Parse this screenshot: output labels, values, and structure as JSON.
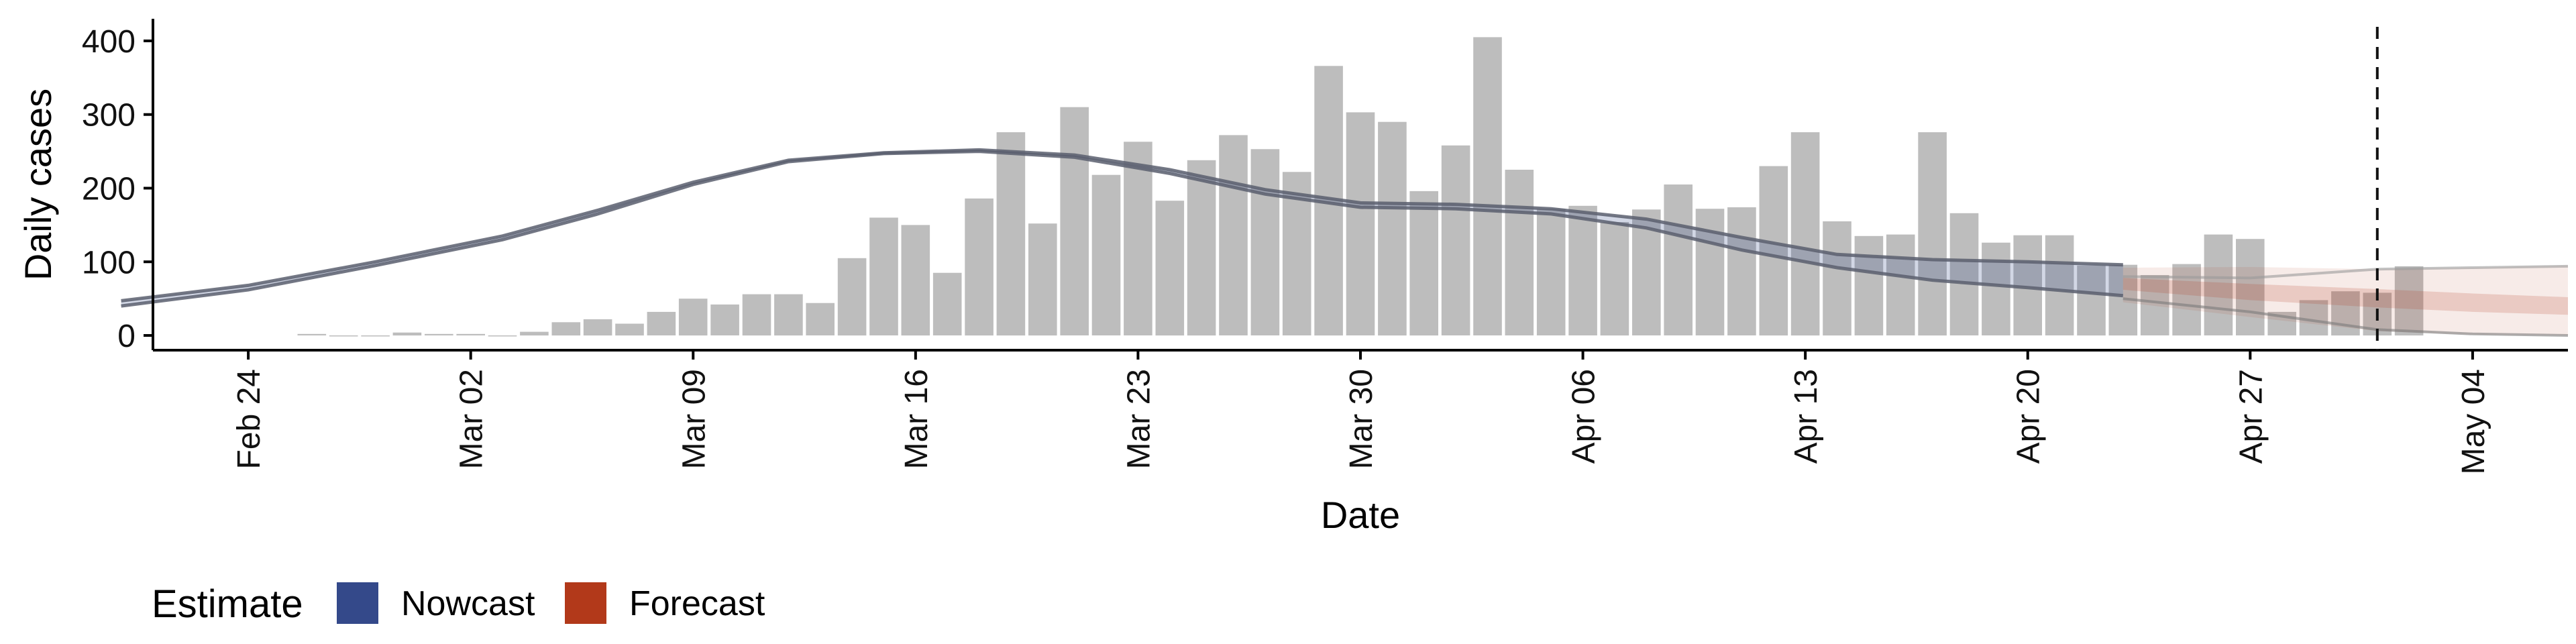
{
  "chart_data": {
    "type": "bar",
    "xlabel": "Date",
    "ylabel": "Daily cases",
    "ylim": [
      -20,
      430
    ],
    "yticks": [
      0,
      100,
      200,
      300,
      400
    ],
    "x_start": "2020-02-21",
    "x_end": "2020-05-07",
    "xticks": [
      {
        "date": "2020-02-24",
        "label": "Feb 24"
      },
      {
        "date": "2020-03-02",
        "label": "Mar 02"
      },
      {
        "date": "2020-03-09",
        "label": "Mar 09"
      },
      {
        "date": "2020-03-16",
        "label": "Mar 16"
      },
      {
        "date": "2020-03-23",
        "label": "Mar 23"
      },
      {
        "date": "2020-03-30",
        "label": "Mar 30"
      },
      {
        "date": "2020-04-06",
        "label": "Apr 06"
      },
      {
        "date": "2020-04-13",
        "label": "Apr 13"
      },
      {
        "date": "2020-04-20",
        "label": "Apr 20"
      },
      {
        "date": "2020-04-27",
        "label": "Apr 27"
      },
      {
        "date": "2020-05-04",
        "label": "May 04"
      }
    ],
    "bars": {
      "start_date": "2020-02-26",
      "values": [
        2,
        0,
        0,
        4,
        2,
        2,
        0,
        5,
        18,
        22,
        16,
        32,
        50,
        42,
        56,
        56,
        44,
        105,
        160,
        150,
        85,
        186,
        276,
        152,
        310,
        218,
        263,
        183,
        238,
        272,
        253,
        222,
        366,
        303,
        290,
        196,
        258,
        405,
        225,
        172,
        176,
        154,
        171,
        205,
        172,
        174,
        230,
        276,
        155,
        135,
        137,
        276,
        166,
        126,
        136,
        136,
        95,
        96,
        82,
        97,
        137,
        131,
        32,
        48,
        60,
        58,
        94
      ]
    },
    "vline_date": "2020-05-01",
    "series": [
      {
        "name": "Nowcast",
        "color": "#34498a",
        "upper_line": [
          [
            "2020-02-20",
            47
          ],
          [
            "2020-02-24",
            68
          ],
          [
            "2020-02-28",
            100
          ],
          [
            "2020-03-03",
            135
          ],
          [
            "2020-03-06",
            170
          ],
          [
            "2020-03-09",
            208
          ],
          [
            "2020-03-12",
            238
          ],
          [
            "2020-03-15",
            248
          ],
          [
            "2020-03-18",
            252
          ],
          [
            "2020-03-21",
            245
          ],
          [
            "2020-03-24",
            225
          ],
          [
            "2020-03-27",
            198
          ],
          [
            "2020-03-30",
            180
          ],
          [
            "2020-04-02",
            178
          ],
          [
            "2020-04-05",
            172
          ],
          [
            "2020-04-08",
            158
          ],
          [
            "2020-04-11",
            133
          ],
          [
            "2020-04-14",
            110
          ],
          [
            "2020-04-17",
            103
          ],
          [
            "2020-04-20",
            100
          ],
          [
            "2020-04-23",
            96
          ]
        ],
        "lower_line": [
          [
            "2020-02-20",
            40
          ],
          [
            "2020-02-24",
            62
          ],
          [
            "2020-02-28",
            95
          ],
          [
            "2020-03-03",
            130
          ],
          [
            "2020-03-06",
            165
          ],
          [
            "2020-03-09",
            205
          ],
          [
            "2020-03-12",
            236
          ],
          [
            "2020-03-15",
            247
          ],
          [
            "2020-03-18",
            250
          ],
          [
            "2020-03-21",
            242
          ],
          [
            "2020-03-24",
            220
          ],
          [
            "2020-03-27",
            192
          ],
          [
            "2020-03-30",
            174
          ],
          [
            "2020-04-02",
            172
          ],
          [
            "2020-04-05",
            165
          ],
          [
            "2020-04-08",
            146
          ],
          [
            "2020-04-11",
            116
          ],
          [
            "2020-04-14",
            92
          ],
          [
            "2020-04-17",
            75
          ],
          [
            "2020-04-20",
            65
          ],
          [
            "2020-04-23",
            54
          ]
        ]
      },
      {
        "name": "Forecast",
        "color": "#b2391a",
        "upper_line": [
          [
            "2020-04-23",
            80
          ],
          [
            "2020-04-27",
            78
          ],
          [
            "2020-05-01",
            90
          ],
          [
            "2020-05-04",
            92
          ],
          [
            "2020-05-07",
            94
          ]
        ],
        "lower_line": [
          [
            "2020-04-23",
            50
          ],
          [
            "2020-04-27",
            32
          ],
          [
            "2020-05-01",
            8
          ],
          [
            "2020-05-04",
            2
          ],
          [
            "2020-05-07",
            0
          ]
        ],
        "outer_upper": [
          [
            "2020-04-23",
            92
          ],
          [
            "2020-04-27",
            93
          ],
          [
            "2020-05-01",
            90
          ],
          [
            "2020-05-04",
            92
          ],
          [
            "2020-05-07",
            95
          ]
        ],
        "outer_lower": [
          [
            "2020-04-23",
            45
          ],
          [
            "2020-04-27",
            25
          ],
          [
            "2020-05-01",
            6
          ],
          [
            "2020-05-04",
            1
          ],
          [
            "2020-05-07",
            0
          ]
        ],
        "inner_upper": [
          [
            "2020-04-23",
            78
          ],
          [
            "2020-04-27",
            70
          ],
          [
            "2020-05-01",
            63
          ],
          [
            "2020-05-04",
            57
          ],
          [
            "2020-05-07",
            52
          ]
        ],
        "inner_lower": [
          [
            "2020-04-23",
            62
          ],
          [
            "2020-04-27",
            48
          ],
          [
            "2020-05-01",
            38
          ],
          [
            "2020-05-04",
            32
          ],
          [
            "2020-05-07",
            28
          ]
        ]
      }
    ],
    "legend": {
      "title": "Estimate",
      "position": "bottom-left",
      "items": [
        {
          "label": "Nowcast",
          "color": "#34498a"
        },
        {
          "label": "Forecast",
          "color": "#b2391a"
        }
      ]
    }
  }
}
